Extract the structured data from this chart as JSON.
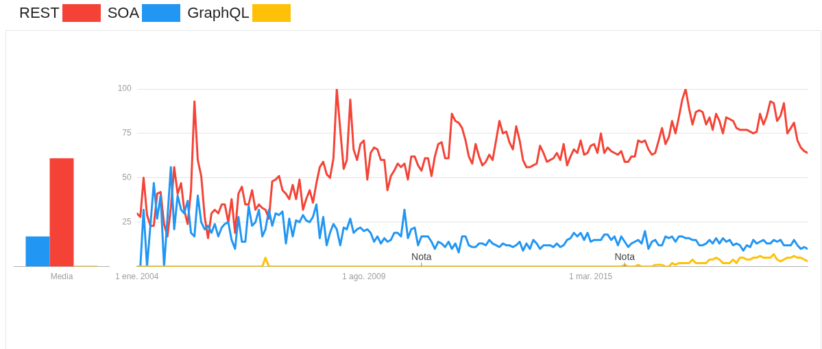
{
  "chart_data": [
    {
      "type": "bar",
      "categories": [
        "Media"
      ],
      "ylim": [
        0,
        100
      ],
      "tick_labels": "x",
      "series": [
        {
          "color": "#2196f3",
          "values": [
            17
          ]
        },
        {
          "color": "#f44336",
          "values": [
            61
          ]
        },
        {
          "color": "#ffc107",
          "values": [
            0.5
          ]
        }
      ]
    },
    {
      "type": "line",
      "legend": "top left",
      "grid": "y",
      "marker": "none",
      "x": [
        "2004-01",
        "2004-02",
        "2004-03",
        "2004-04",
        "2004-05",
        "2004-06",
        "2004-07",
        "2004-08",
        "2004-09",
        "2004-10",
        "2004-11",
        "2004-12",
        "2005-01",
        "2005-02",
        "2005-03",
        "2005-04",
        "2005-05",
        "2005-06",
        "2005-07",
        "2005-08",
        "2005-09",
        "2005-10",
        "2005-11",
        "2005-12",
        "2006-01",
        "2006-02",
        "2006-03",
        "2006-04",
        "2006-05",
        "2006-06",
        "2006-07",
        "2006-08",
        "2006-09",
        "2006-10",
        "2006-11",
        "2006-12",
        "2007-01",
        "2007-02",
        "2007-03",
        "2007-04",
        "2007-05",
        "2007-06",
        "2007-07",
        "2007-08",
        "2007-09",
        "2007-10",
        "2007-11",
        "2007-12",
        "2008-01",
        "2008-02",
        "2008-03",
        "2008-04",
        "2008-05",
        "2008-06",
        "2008-07",
        "2008-08",
        "2008-09",
        "2008-10",
        "2008-11",
        "2008-12",
        "2009-01",
        "2009-02",
        "2009-03",
        "2009-04",
        "2009-05",
        "2009-06",
        "2009-07",
        "2009-08",
        "2009-09",
        "2009-10",
        "2009-11",
        "2009-12",
        "2010-01",
        "2010-02",
        "2010-03",
        "2010-04",
        "2010-05",
        "2010-06",
        "2010-07",
        "2010-08",
        "2010-09",
        "2010-10",
        "2010-11",
        "2010-12",
        "2011-01",
        "2011-02",
        "2011-03",
        "2011-04",
        "2011-05",
        "2011-06",
        "2011-07",
        "2011-08",
        "2011-09",
        "2011-10",
        "2011-11",
        "2011-12",
        "2012-01",
        "2012-02",
        "2012-03",
        "2012-04",
        "2012-05",
        "2012-06",
        "2012-07",
        "2012-08",
        "2012-09",
        "2012-10",
        "2012-11",
        "2012-12",
        "2013-01",
        "2013-02",
        "2013-03",
        "2013-04",
        "2013-05",
        "2013-06",
        "2013-07",
        "2013-08",
        "2013-09",
        "2013-10",
        "2013-11",
        "2013-12",
        "2014-01",
        "2014-02",
        "2014-03",
        "2014-04",
        "2014-05",
        "2014-06",
        "2014-07",
        "2014-08",
        "2014-09",
        "2014-10",
        "2014-11",
        "2014-12",
        "2015-01",
        "2015-02",
        "2015-03",
        "2015-04",
        "2015-05",
        "2015-06",
        "2015-07",
        "2015-08",
        "2015-09",
        "2015-10",
        "2015-11",
        "2015-12",
        "2016-01",
        "2016-02",
        "2016-03",
        "2016-04",
        "2016-05",
        "2016-06",
        "2016-07",
        "2016-08",
        "2016-09",
        "2016-10",
        "2016-11",
        "2016-12",
        "2017-01",
        "2017-02",
        "2017-03",
        "2017-04",
        "2017-05",
        "2017-06",
        "2017-07",
        "2017-08",
        "2017-09",
        "2017-10",
        "2017-11",
        "2017-12",
        "2018-01",
        "2018-02",
        "2018-03",
        "2018-04",
        "2018-05",
        "2018-06",
        "2018-07",
        "2018-08",
        "2018-09",
        "2018-10",
        "2018-11",
        "2018-12",
        "2019-01",
        "2019-02",
        "2019-03",
        "2019-04",
        "2019-05",
        "2019-06",
        "2019-07",
        "2019-08",
        "2019-09",
        "2019-10",
        "2019-11",
        "2019-12",
        "2020-01",
        "2020-02",
        "2020-03",
        "2020-04",
        "2020-05",
        "2020-06",
        "2020-07"
      ],
      "xlim": [
        "2004-01",
        "2020-07"
      ],
      "xticks": [
        {
          "value": "2004-01-01",
          "label": "1 ene. 2004"
        },
        {
          "value": "2009-08-01",
          "label": "1 ago. 2009"
        },
        {
          "value": "2015-03-01",
          "label": "1 mar. 2015"
        }
      ],
      "ylim": [
        0,
        100
      ],
      "yticks": [
        25,
        50,
        75,
        100
      ],
      "annotations": [
        {
          "text": "Nota",
          "x": "2011-01",
          "y": 0
        },
        {
          "text": "Nota",
          "x": "2016-01",
          "y": 0
        }
      ],
      "series": [
        {
          "name": "REST",
          "color": "#f44336",
          "values": [
            30,
            28,
            50,
            29,
            23,
            23,
            41,
            42,
            24,
            17,
            33,
            56,
            41,
            47,
            32,
            24,
            43,
            93,
            60,
            51,
            28,
            16,
            30,
            32,
            30,
            35,
            35,
            25,
            38,
            19,
            41,
            45,
            35,
            35,
            43,
            32,
            35,
            33,
            32,
            27,
            48,
            49,
            51,
            43,
            41,
            38,
            46,
            38,
            49,
            32,
            38,
            43,
            36,
            47,
            56,
            59,
            52,
            50,
            61,
            100,
            77,
            55,
            60,
            94,
            66,
            60,
            69,
            71,
            49,
            64,
            67,
            66,
            60,
            60,
            43,
            51,
            54,
            58,
            56,
            58,
            49,
            62,
            62,
            57,
            54,
            61,
            61,
            51,
            62,
            69,
            70,
            61,
            61,
            86,
            82,
            81,
            78,
            71,
            62,
            58,
            69,
            62,
            57,
            59,
            63,
            60,
            71,
            82,
            75,
            76,
            70,
            66,
            79,
            71,
            60,
            56,
            56,
            57,
            58,
            68,
            64,
            59,
            60,
            61,
            64,
            60,
            69,
            57,
            62,
            66,
            64,
            71,
            63,
            64,
            68,
            69,
            64,
            75,
            64,
            67,
            65,
            64,
            63,
            65,
            59,
            59,
            62,
            62,
            71,
            70,
            71,
            66,
            63,
            64,
            71,
            78,
            69,
            73,
            82,
            75,
            84,
            94,
            100,
            89,
            80,
            87,
            88,
            87,
            80,
            84,
            77,
            86,
            82,
            75,
            84,
            83,
            82,
            78,
            77,
            77,
            77,
            76,
            75,
            76,
            86,
            80,
            85,
            93,
            92,
            82,
            85,
            92,
            75,
            78,
            81,
            71,
            67,
            65,
            64
          ]
        },
        {
          "name": "SOA",
          "color": "#2196f3",
          "values": [
            0,
            0,
            32,
            0,
            23,
            47,
            27,
            40,
            0,
            27,
            56,
            21,
            40,
            32,
            30,
            37,
            19,
            17,
            40,
            25,
            21,
            23,
            19,
            24,
            17,
            22,
            24,
            25,
            15,
            10,
            28,
            14,
            14,
            34,
            23,
            25,
            32,
            17,
            21,
            32,
            23,
            30,
            29,
            31,
            13,
            27,
            17,
            26,
            25,
            29,
            26,
            25,
            28,
            35,
            16,
            28,
            12,
            19,
            24,
            21,
            12,
            22,
            21,
            27,
            19,
            21,
            22,
            20,
            21,
            19,
            14,
            17,
            13,
            16,
            14,
            15,
            19,
            19,
            17,
            32,
            16,
            21,
            22,
            12,
            17,
            17,
            17,
            14,
            10,
            14,
            13,
            11,
            14,
            10,
            13,
            8,
            17,
            17,
            12,
            11,
            11,
            13,
            13,
            12,
            15,
            13,
            12,
            11,
            13,
            12,
            12,
            11,
            12,
            14,
            9,
            13,
            10,
            15,
            13,
            10,
            12,
            12,
            12,
            11,
            13,
            11,
            12,
            15,
            16,
            19,
            17,
            19,
            15,
            19,
            14,
            15,
            15,
            15,
            18,
            18,
            15,
            17,
            12,
            17,
            14,
            11,
            13,
            14,
            15,
            13,
            20,
            10,
            14,
            15,
            12,
            12,
            17,
            16,
            17,
            14,
            17,
            17,
            16,
            16,
            15,
            15,
            12,
            12,
            13,
            15,
            13,
            16,
            13,
            16,
            14,
            15,
            12,
            13,
            12,
            9,
            12,
            11,
            15,
            13,
            14,
            15,
            13,
            13,
            15,
            14,
            15,
            12,
            12,
            12,
            15,
            12,
            10,
            11,
            10
          ]
        },
        {
          "name": "GraphQL",
          "color": "#ffc107",
          "values": [
            0,
            0,
            0,
            0,
            0,
            0,
            0,
            0,
            0,
            0,
            0,
            0,
            0,
            0,
            0,
            0,
            0,
            0,
            0,
            0,
            0,
            0,
            0,
            0,
            0,
            0,
            0,
            0,
            0,
            0,
            0,
            0,
            0,
            0,
            0,
            0,
            0,
            0,
            5,
            0,
            0,
            0,
            0,
            0,
            0,
            0,
            0,
            0,
            0,
            0,
            0,
            0,
            0,
            0,
            0,
            0,
            0,
            0,
            0,
            0,
            0,
            0,
            0,
            0,
            0,
            0,
            0,
            0,
            0,
            0,
            0,
            0,
            0,
            0,
            0,
            0,
            0,
            0,
            0,
            0,
            0,
            0,
            0,
            0,
            0,
            0,
            0,
            0,
            0,
            0,
            0,
            0,
            0,
            0,
            0,
            0,
            0,
            0,
            0,
            0,
            0,
            0,
            0,
            0,
            0,
            0,
            0,
            0,
            0,
            0,
            0,
            0,
            0,
            0,
            0,
            0,
            0,
            0,
            0,
            0,
            0,
            0,
            0,
            0,
            0,
            0,
            0,
            0,
            0,
            0,
            0,
            0,
            0,
            0,
            0,
            0,
            0,
            0,
            0,
            0,
            0,
            0,
            0,
            0,
            1,
            0,
            0,
            0,
            1,
            0,
            0,
            0,
            0,
            1,
            1,
            1,
            0,
            0,
            2,
            1,
            2,
            2,
            2,
            2,
            4,
            2,
            2,
            2,
            2,
            4,
            4,
            5,
            4,
            2,
            2,
            2,
            4,
            2,
            5,
            5,
            4,
            4,
            5,
            5,
            6,
            5,
            5,
            5,
            7,
            4,
            3,
            4,
            5,
            5,
            6,
            5,
            5,
            4,
            3
          ]
        }
      ]
    }
  ]
}
